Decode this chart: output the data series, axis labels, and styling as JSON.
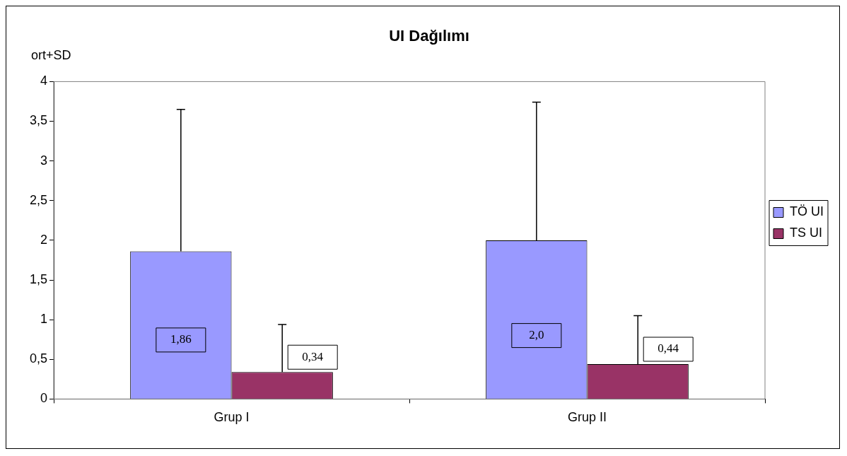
{
  "chart_data": {
    "type": "bar",
    "title": "UI Dağılımı",
    "ylabel": "ort+SD",
    "categories": [
      "Grup I",
      "Grup II"
    ],
    "series": [
      {
        "name": "TÖ UI",
        "color": "#9999ff",
        "values": [
          1.86,
          2.0
        ],
        "errors": [
          [
            1.86,
            3.65
          ],
          [
            2.0,
            3.74
          ]
        ],
        "value_labels": [
          "1,86",
          "2,0"
        ]
      },
      {
        "name": "TS UI",
        "color": "#993366",
        "values": [
          0.34,
          0.44
        ],
        "errors": [
          [
            0.34,
            0.94
          ],
          [
            0.44,
            1.05
          ]
        ],
        "value_labels": [
          "0,34",
          "0,44"
        ]
      }
    ],
    "ylim": [
      0,
      4
    ],
    "yticks": [
      0,
      {
        "value": 0.5,
        "label": "0,5"
      },
      1,
      {
        "value": 1.5,
        "label": "1,5"
      },
      2,
      {
        "value": 2.5,
        "label": "2,5"
      },
      3,
      {
        "value": 3.5,
        "label": "3,5"
      },
      4
    ],
    "grid": false,
    "legend": "right"
  }
}
